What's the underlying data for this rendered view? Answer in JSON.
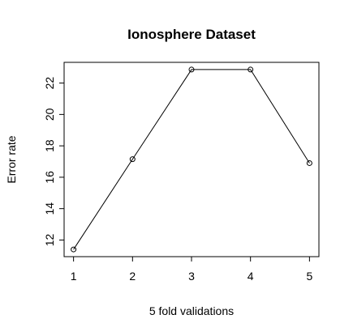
{
  "chart_data": {
    "type": "line",
    "title": "Ionosphere Dataset",
    "xlabel": "5 fold validations",
    "ylabel": "Error rate",
    "x": [
      1,
      2,
      3,
      4,
      5
    ],
    "values": [
      11.4,
      17.15,
      22.86,
      22.86,
      16.9
    ],
    "xticks": [
      1,
      2,
      3,
      4,
      5
    ],
    "yticks": [
      12,
      14,
      16,
      18,
      20,
      22
    ],
    "xlim": [
      0.84,
      5.16
    ],
    "ylim": [
      10.94,
      23.32
    ],
    "grid": false,
    "markers": "open-circle",
    "line_color": "#000000"
  }
}
